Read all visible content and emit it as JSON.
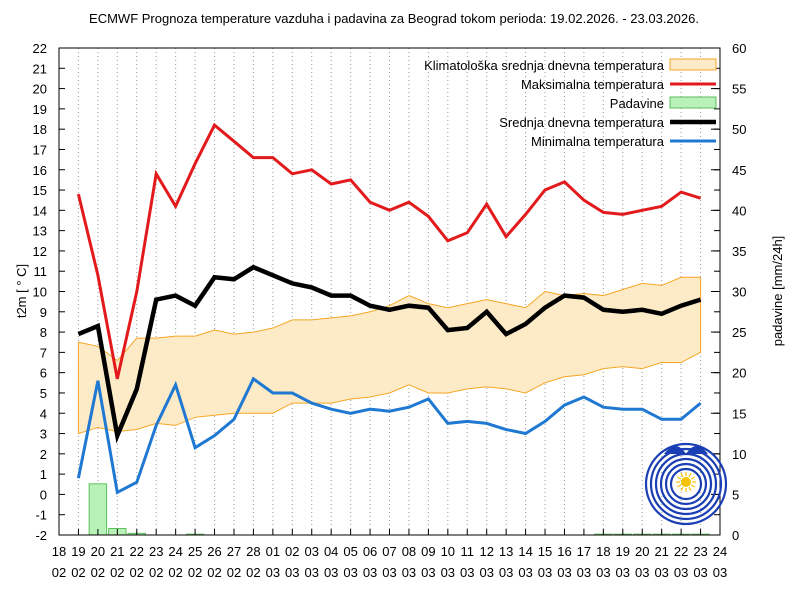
{
  "chart_data": {
    "type": "line",
    "title": "ECMWF Prognoza temperature vazduha i padavina za Beograd tokom perioda: 19.02.2026. - 23.03.2026.",
    "ylabel": "t2m [ ° C]",
    "y2label": "padavine [mm/24h]",
    "ylim": [
      -2,
      22
    ],
    "y2lim": [
      0,
      60
    ],
    "y_ticks": [
      -2,
      -1,
      0,
      1,
      2,
      3,
      4,
      5,
      6,
      7,
      8,
      9,
      10,
      11,
      12,
      13,
      14,
      15,
      16,
      17,
      18,
      19,
      20,
      21,
      22
    ],
    "y2_ticks": [
      0,
      5,
      10,
      15,
      20,
      25,
      30,
      35,
      40,
      45,
      50,
      55,
      60
    ],
    "x_ticks": [
      {
        "day": "18",
        "month": "02"
      },
      {
        "day": "19",
        "month": "02"
      },
      {
        "day": "20",
        "month": "02"
      },
      {
        "day": "21",
        "month": "02"
      },
      {
        "day": "22",
        "month": "02"
      },
      {
        "day": "23",
        "month": "02"
      },
      {
        "day": "24",
        "month": "02"
      },
      {
        "day": "25",
        "month": "02"
      },
      {
        "day": "26",
        "month": "02"
      },
      {
        "day": "27",
        "month": "02"
      },
      {
        "day": "28",
        "month": "02"
      },
      {
        "day": "01",
        "month": "03"
      },
      {
        "day": "02",
        "month": "03"
      },
      {
        "day": "03",
        "month": "03"
      },
      {
        "day": "04",
        "month": "03"
      },
      {
        "day": "05",
        "month": "03"
      },
      {
        "day": "06",
        "month": "03"
      },
      {
        "day": "07",
        "month": "03"
      },
      {
        "day": "08",
        "month": "03"
      },
      {
        "day": "09",
        "month": "03"
      },
      {
        "day": "10",
        "month": "03"
      },
      {
        "day": "11",
        "month": "03"
      },
      {
        "day": "12",
        "month": "03"
      },
      {
        "day": "13",
        "month": "03"
      },
      {
        "day": "14",
        "month": "03"
      },
      {
        "day": "15",
        "month": "03"
      },
      {
        "day": "16",
        "month": "03"
      },
      {
        "day": "17",
        "month": "03"
      },
      {
        "day": "18",
        "month": "03"
      },
      {
        "day": "19",
        "month": "03"
      },
      {
        "day": "20",
        "month": "03"
      },
      {
        "day": "21",
        "month": "03"
      },
      {
        "day": "22",
        "month": "03"
      },
      {
        "day": "23",
        "month": "03"
      },
      {
        "day": "24",
        "month": "03"
      }
    ],
    "grid": "dotted vertical lines at each day",
    "legend_position": "top-right",
    "climatology_band": {
      "name": "Klimatološka srednja dnevna temperatura",
      "color": "#f5a623",
      "fill": "#fdebc8",
      "upper": [
        7.5,
        7.3,
        6.6,
        7.7,
        7.7,
        7.8,
        7.8,
        8.1,
        7.9,
        8.0,
        8.2,
        8.6,
        8.6,
        8.7,
        8.8,
        9.0,
        9.3,
        9.8,
        9.4,
        9.2,
        9.4,
        9.6,
        9.4,
        9.2,
        10.0,
        9.8,
        9.9,
        9.8,
        10.1,
        10.4,
        10.3,
        10.7,
        10.7
      ],
      "lower": [
        3.0,
        3.3,
        3.1,
        3.2,
        3.5,
        3.4,
        3.8,
        3.9,
        4.0,
        4.0,
        4.0,
        4.5,
        4.5,
        4.5,
        4.7,
        4.8,
        5.0,
        5.4,
        5.0,
        5.0,
        5.2,
        5.3,
        5.2,
        5.0,
        5.5,
        5.8,
        5.9,
        6.2,
        6.3,
        6.2,
        6.5,
        6.5,
        7.0
      ]
    },
    "series": [
      {
        "name": "Maksimalna temperatura",
        "color": "#e31a1c",
        "width": 3,
        "values": [
          14.8,
          10.8,
          5.7,
          10.0,
          15.8,
          14.2,
          16.3,
          18.2,
          17.4,
          16.6,
          16.6,
          15.8,
          16.0,
          15.3,
          15.5,
          14.4,
          14.0,
          14.4,
          13.7,
          12.5,
          12.9,
          14.3,
          12.7,
          13.8,
          15.0,
          15.4,
          14.5,
          13.9,
          13.8,
          14.0,
          14.2,
          14.9,
          14.6
        ]
      },
      {
        "name": "Srednja dnevna temperatura",
        "color": "#000000",
        "width": 4.5,
        "values": [
          7.9,
          8.3,
          2.9,
          5.2,
          9.6,
          9.8,
          9.3,
          10.7,
          10.6,
          11.2,
          10.8,
          10.4,
          10.2,
          9.8,
          9.8,
          9.3,
          9.1,
          9.3,
          9.2,
          8.1,
          8.2,
          9.0,
          7.9,
          8.4,
          9.2,
          9.8,
          9.7,
          9.1,
          9.0,
          9.1,
          8.9,
          9.3,
          9.6
        ]
      },
      {
        "name": "Minimalna temperatura",
        "color": "#1f78d1",
        "width": 3,
        "values": [
          0.8,
          5.6,
          0.1,
          0.6,
          3.4,
          5.4,
          2.3,
          2.9,
          3.7,
          5.7,
          5.0,
          5.0,
          4.5,
          4.2,
          4.0,
          4.2,
          4.1,
          4.3,
          4.7,
          3.5,
          3.6,
          3.5,
          3.2,
          3.0,
          3.6,
          4.4,
          4.8,
          4.3,
          4.2,
          4.2,
          3.7,
          3.7,
          4.5
        ]
      }
    ],
    "precipitation": {
      "name": "Padavine",
      "color": "#5bc05b",
      "fill": "#b8f2b8",
      "values": [
        0,
        6.3,
        0.8,
        0.2,
        0,
        0,
        0.1,
        0,
        0,
        0,
        0,
        0,
        0,
        0,
        0,
        0,
        0,
        0,
        0,
        0,
        0,
        0,
        0,
        0,
        0,
        0,
        0,
        0.1,
        0.1,
        0.1,
        0.1,
        0.1,
        0.1
      ]
    },
    "legend_order": [
      "climatology",
      "max",
      "precip",
      "mean",
      "min"
    ]
  },
  "logo": {
    "name": "rhmz-logo",
    "color": "#1a3fb5",
    "accent": "#f4c400"
  }
}
